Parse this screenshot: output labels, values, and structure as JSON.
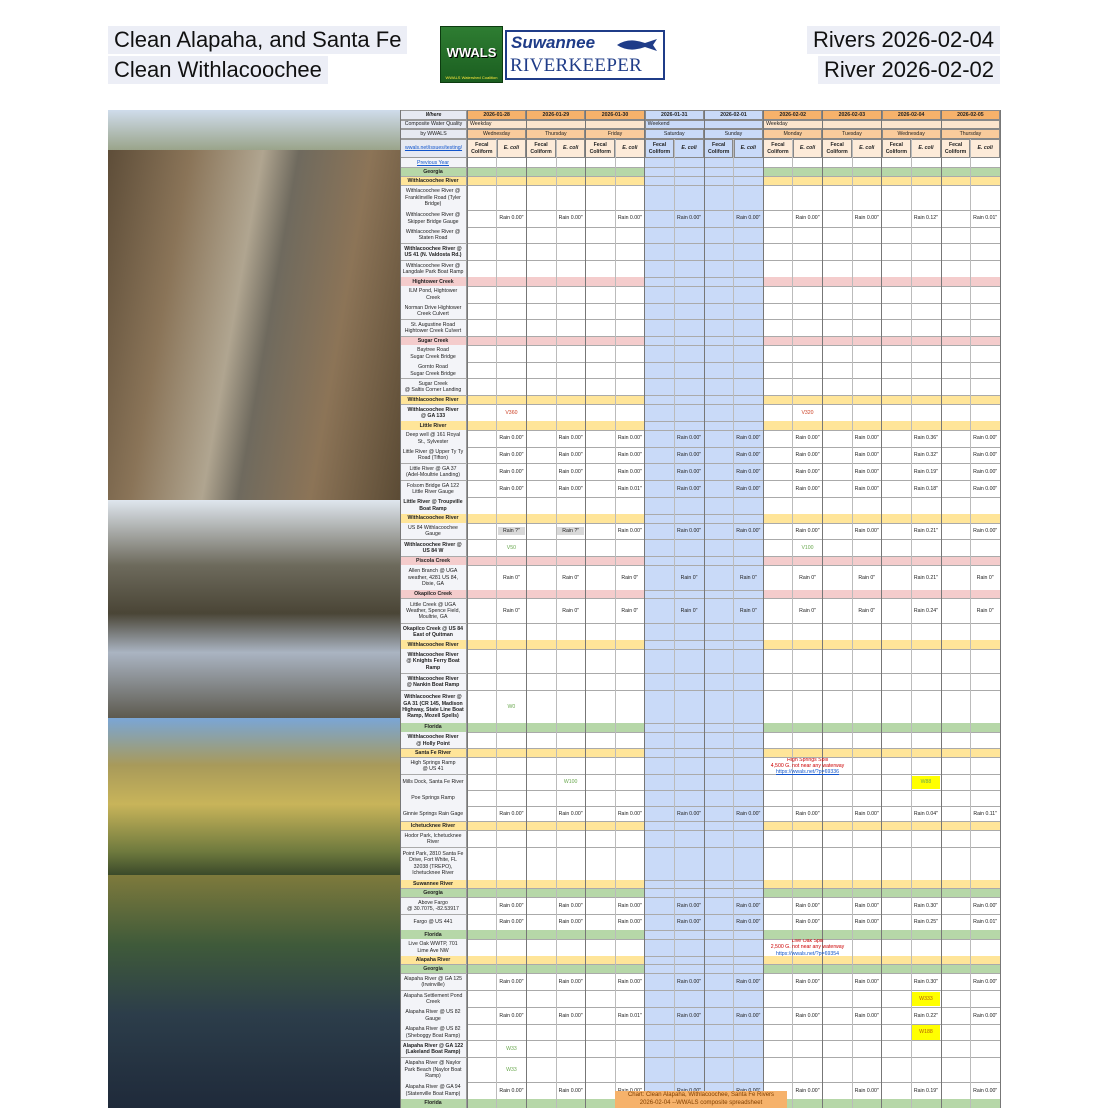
{
  "header": {
    "left": [
      "Clean Alapaha, and Santa Fe",
      "Clean Withlacoochee"
    ],
    "right": [
      "Rivers 2026-02-04",
      "River 2026-02-02"
    ],
    "logo": {
      "badge": "WWALS",
      "tagline": "WWALS Watershed Coalition",
      "name1": "Suwannee",
      "name2": "RIVERKEEPER"
    }
  },
  "table": {
    "corner": [
      "Where",
      "Composite Water Quality",
      "by WWALS",
      "wwals.net/issues/testing/"
    ],
    "groups": [
      {
        "label": "Weekday",
        "span": 3
      },
      {
        "label": "Weekend",
        "span": 2
      },
      {
        "label": "Weekday",
        "span": 4
      }
    ],
    "dates": [
      {
        "date": "2026-01-28",
        "day": "Wednesday",
        "weekend": false
      },
      {
        "date": "2026-01-29",
        "day": "Thursday",
        "weekend": false
      },
      {
        "date": "2026-01-30",
        "day": "Friday",
        "weekend": false
      },
      {
        "date": "2026-01-31",
        "day": "Saturday",
        "weekend": true
      },
      {
        "date": "2026-02-01",
        "day": "Sunday",
        "weekend": true
      },
      {
        "date": "2026-02-02",
        "day": "Monday",
        "weekend": false
      },
      {
        "date": "2026-02-03",
        "day": "Tuesday",
        "weekend": false
      },
      {
        "date": "2026-02-04",
        "day": "Wednesday",
        "weekend": false
      },
      {
        "date": "2026-02-05",
        "day": "Thursday",
        "weekend": false
      }
    ],
    "subheads": [
      [
        "Fecal",
        "Coliform"
      ],
      [
        "E. coli"
      ]
    ],
    "rows": [
      {
        "kind": "link",
        "lines": [
          "Previous Year"
        ]
      },
      {
        "kind": "state",
        "lines": [
          "Georgia"
        ]
      },
      {
        "kind": "river",
        "lines": [
          "Withlacoochee River"
        ]
      },
      {
        "kind": "site",
        "lines": [
          "Withlacoochee River @",
          "Franklinville Road (Tyler",
          "Bridge)"
        ]
      },
      {
        "kind": "site",
        "lines": [
          "Withlacoochee River @",
          "Skipper Bridge Gauge"
        ],
        "rain": [
          "Rain 0.00\"",
          "Rain 0.00\"",
          "Rain 0.00\"",
          "Rain 0.00\"",
          "Rain 0.00\"",
          "Rain 0.00\"",
          "Rain 0.00\"",
          "Rain 0.12\"",
          "Rain 0.01\""
        ]
      },
      {
        "kind": "site",
        "lines": [
          "Withlacoochee River @",
          "Staten Road"
        ]
      },
      {
        "kind": "site",
        "bold": true,
        "lines": [
          "Withlacoochee River @",
          "US 41 (N. Valdosta Rd.)"
        ]
      },
      {
        "kind": "site",
        "lines": [
          "Withlacoochee River @",
          "Langdale Park Boat Ramp"
        ]
      },
      {
        "kind": "creek",
        "lines": [
          "Hightower Creek"
        ]
      },
      {
        "kind": "site",
        "lines": [
          "ILM Pond, Hightower",
          "Creek"
        ]
      },
      {
        "kind": "site",
        "lines": [
          "Norman Drive Hightower",
          "Creek Culvert"
        ]
      },
      {
        "kind": "site",
        "lines": [
          "St. Augustine Road",
          "Hightower Creek Culvert"
        ]
      },
      {
        "kind": "creek",
        "lines": [
          "Sugar Creek"
        ]
      },
      {
        "kind": "site",
        "lines": [
          "Baytree Road",
          "Sugar Creek Bridge"
        ]
      },
      {
        "kind": "site",
        "lines": [
          "Gornto Road",
          "Sugar Creek Bridge"
        ]
      },
      {
        "kind": "site",
        "lines": [
          "Sugar Creek",
          "@ Saltis Corner Landing"
        ]
      },
      {
        "kind": "river",
        "lines": [
          "Withlacoochee River"
        ]
      },
      {
        "kind": "site",
        "bold": true,
        "lines": [
          "Withlacoochee River",
          "@ GA 133"
        ],
        "results": [
          {
            "col": 1,
            "text": "V360",
            "color": "#cc4125"
          },
          {
            "col": 11,
            "text": "V320",
            "color": "#cc4125"
          }
        ]
      },
      {
        "kind": "river",
        "lines": [
          "Little River"
        ]
      },
      {
        "kind": "site",
        "lines": [
          "Deep well @ 161 Royal",
          "St., Sylvester"
        ],
        "rain": [
          "Rain 0.00\"",
          "Rain 0.00\"",
          "Rain 0.00\"",
          "Rain 0.00\"",
          "Rain 0.00\"",
          "Rain 0.00\"",
          "Rain 0.00\"",
          "Rain 0.36\"",
          "Rain 0.00\""
        ]
      },
      {
        "kind": "site",
        "lines": [
          "Little River @ Upper Ty Ty",
          "Road (Tifton)"
        ],
        "rain": [
          "Rain 0.00\"",
          "Rain 0.00\"",
          "Rain 0.00\"",
          "Rain 0.00\"",
          "Rain 0.00\"",
          "Rain 0.00\"",
          "Rain 0.00\"",
          "Rain 0.32\"",
          "Rain 0.00\""
        ]
      },
      {
        "kind": "site",
        "lines": [
          "Little River @ GA 37",
          "(Adel-Moultrie Landing)"
        ],
        "rain": [
          "Rain 0.00\"",
          "Rain 0.00\"",
          "Rain 0.00\"",
          "Rain 0.00\"",
          "Rain 0.00\"",
          "Rain 0.00\"",
          "Rain 0.00\"",
          "Rain 0.19\"",
          "Rain 0.00\""
        ]
      },
      {
        "kind": "site",
        "lines": [
          "Folsom Bridge GA 122",
          "Little River Gauge"
        ],
        "rain": [
          "Rain 0.00\"",
          "Rain 0.00\"",
          "Rain 0.01\"",
          "Rain 0.00\"",
          "Rain 0.00\"",
          "Rain 0.00\"",
          "Rain 0.00\"",
          "Rain 0.18\"",
          "Rain 0.00\""
        ]
      },
      {
        "kind": "site",
        "bold": true,
        "lines": [
          "Little River @ Troupville",
          "Boat Ramp"
        ]
      },
      {
        "kind": "river",
        "lines": [
          "Withlacoochee River"
        ]
      },
      {
        "kind": "site",
        "lines": [
          "US 84 Withlacoochee",
          "Gauge"
        ],
        "rain": [
          "Rain ?\"",
          "Rain ?\"",
          "Rain 0.00\"",
          "Rain 0.00\"",
          "Rain 0.00\"",
          "Rain 0.00\"",
          "Rain 0.00\"",
          "Rain 0.21\"",
          "Rain 0.00\""
        ]
      },
      {
        "kind": "site",
        "bold": true,
        "lines": [
          "Withlacoochee River @",
          "US 84 W"
        ],
        "results": [
          {
            "col": 1,
            "text": "V50",
            "color": "#6aa84f"
          },
          {
            "col": 11,
            "text": "V100",
            "color": "#6aa84f"
          }
        ]
      },
      {
        "kind": "creek",
        "lines": [
          "Piscola Creek"
        ]
      },
      {
        "kind": "site",
        "lines": [
          "Allen Branch @ UGA",
          "weather, 4281 US 84,",
          "Dixie, GA"
        ],
        "rain": [
          "Rain 0\"",
          "Rain 0\"",
          "Rain 0\"",
          "Rain 0\"",
          "Rain 0\"",
          "Rain 0\"",
          "Rain 0\"",
          "Rain 0.21\"",
          "Rain 0\""
        ]
      },
      {
        "kind": "creek",
        "lines": [
          "Okapilco Creek"
        ]
      },
      {
        "kind": "site",
        "lines": [
          "Little Creek @ UGA",
          "Weather, Spence Field,",
          "Moultrie, GA"
        ],
        "rain": [
          "Rain 0\"",
          "Rain 0\"",
          "Rain 0\"",
          "Rain 0\"",
          "Rain 0\"",
          "Rain 0\"",
          "Rain 0\"",
          "Rain 0.24\"",
          "Rain 0\""
        ]
      },
      {
        "kind": "site",
        "bold": true,
        "lines": [
          "Okapilco Creek @ US 84",
          "East of Quitman"
        ]
      },
      {
        "kind": "river",
        "lines": [
          "Withlacoochee River"
        ]
      },
      {
        "kind": "site",
        "bold": true,
        "lines": [
          "Withlacoochee River",
          "@ Knights Ferry Boat",
          "Ramp"
        ]
      },
      {
        "kind": "site",
        "bold": true,
        "lines": [
          "Withlacoochee River",
          "@ Nankin Boat Ramp"
        ]
      },
      {
        "kind": "site",
        "bold": true,
        "lines": [
          "Withlacoochee River @",
          "GA 31 (CR 145, Madison",
          "Highway, State Line Boat",
          "Ramp, Mozell Spells)"
        ],
        "results": [
          {
            "col": 1,
            "text": "W0",
            "color": "#6aa84f"
          }
        ]
      },
      {
        "kind": "state",
        "lines": [
          "Florida"
        ]
      },
      {
        "kind": "site",
        "bold": true,
        "lines": [
          "Withlacoochee River",
          "@ Holly Point"
        ]
      },
      {
        "kind": "river",
        "lines": [
          "Santa Fe River"
        ]
      },
      {
        "kind": "site",
        "lines": [
          "High Springs Ramp",
          "@ US 41"
        ],
        "notes": [
          {
            "col": 11,
            "lines": [
              "High Springs Spill",
              "4,500 G. not near any waterway"
            ],
            "url": "https://wwals.net/?p=69336"
          }
        ]
      },
      {
        "kind": "site",
        "lines": [
          "Mills Dock, Santa Fe River"
        ],
        "results": [
          {
            "col": 3,
            "text": "W100",
            "color": "#6aa84f"
          },
          {
            "col": 15,
            "text": "W88",
            "color": "#6aa84f",
            "highlight": true
          }
        ]
      },
      {
        "kind": "site",
        "lines": [
          "Poe Springs Ramp"
        ]
      },
      {
        "kind": "site",
        "lines": [
          "Ginnie Springs Rain Gage"
        ],
        "rain": [
          "Rain 0.00\"",
          "Rain 0.00\"",
          "Rain 0.00\"",
          "Rain 0.00\"",
          "Rain 0.00\"",
          "Rain 0.00\"",
          "Rain 0.00\"",
          "Rain 0.04\"",
          "Rain 0.11\""
        ]
      },
      {
        "kind": "river",
        "lines": [
          "Ichetucknee River"
        ]
      },
      {
        "kind": "site",
        "lines": [
          "Hodor Park, Ichetucknee",
          "River"
        ]
      },
      {
        "kind": "site",
        "lines": [
          "Point Park, 2810 Santa Fe",
          "Drive, Fort White, FL",
          "32038 (TREPO),",
          "Ichetucknee River"
        ]
      },
      {
        "kind": "river",
        "lines": [
          "Suwannee River"
        ]
      },
      {
        "kind": "state",
        "lines": [
          "Georgia"
        ]
      },
      {
        "kind": "site",
        "lines": [
          "Above Fargo",
          "@ 30.7075, -82.53917"
        ],
        "rain": [
          "Rain 0.00\"",
          "Rain 0.00\"",
          "Rain 0.00\"",
          "Rain 0.00\"",
          "Rain 0.00\"",
          "Rain 0.00\"",
          "Rain 0.00\"",
          "Rain 0.30\"",
          "Rain 0.00\""
        ]
      },
      {
        "kind": "site",
        "lines": [
          "Fargo @ US 441"
        ],
        "rain": [
          "Rain 0.00\"",
          "Rain 0.00\"",
          "Rain 0.00\"",
          "Rain 0.00\"",
          "Rain 0.00\"",
          "Rain 0.00\"",
          "Rain 0.00\"",
          "Rain 0.25\"",
          "Rain 0.01\""
        ]
      },
      {
        "kind": "state",
        "lines": [
          "Florida"
        ]
      },
      {
        "kind": "site",
        "lines": [
          "Live Oak WWTP, 701",
          "Lime Ave NW"
        ],
        "notes": [
          {
            "col": 11,
            "lines": [
              "Live Oak Spill",
              "2,500 G. not near any waterway"
            ],
            "url": "https://wwals.net/?p=69354"
          }
        ]
      },
      {
        "kind": "river",
        "lines": [
          "Alapaha River"
        ]
      },
      {
        "kind": "state",
        "lines": [
          "Georgia"
        ]
      },
      {
        "kind": "site",
        "lines": [
          "Alapaha River @ GA 125",
          "(Irwinville)"
        ],
        "rain": [
          "Rain 0.00\"",
          "Rain 0.00\"",
          "Rain 0.00\"",
          "Rain 0.00\"",
          "Rain 0.00\"",
          "Rain 0.00\"",
          "Rain 0.00\"",
          "Rain 0.30\"",
          "Rain 0.00\""
        ]
      },
      {
        "kind": "site",
        "lines": [
          "Alapaha Settlement Pond",
          "Creek"
        ],
        "results": [
          {
            "col": 15,
            "text": "W333",
            "color": "#b45f06",
            "highlight": true
          }
        ]
      },
      {
        "kind": "site",
        "lines": [
          "Alapaha River @ US 82",
          "Gauge"
        ],
        "rain": [
          "Rain 0.00\"",
          "Rain 0.00\"",
          "Rain 0.01\"",
          "Rain 0.00\"",
          "Rain 0.00\"",
          "Rain 0.00\"",
          "Rain 0.00\"",
          "Rain 0.22\"",
          "Rain 0.00\""
        ]
      },
      {
        "kind": "site",
        "lines": [
          "Alapaha River @ US 82",
          "(Sheboggy Boat Ramp)"
        ],
        "results": [
          {
            "col": 15,
            "text": "W188",
            "color": "#b45f06",
            "highlight": true
          }
        ]
      },
      {
        "kind": "site",
        "bold": true,
        "lines": [
          "Alapaha River @ GA 122",
          "(Lakeland Boat Ramp)"
        ],
        "results": [
          {
            "col": 1,
            "text": "W33",
            "color": "#6aa84f"
          }
        ]
      },
      {
        "kind": "site",
        "lines": [
          "Alapaha River @ Naylor",
          "Park Beach (Naylor Boat",
          "Ramp)"
        ],
        "results": [
          {
            "col": 1,
            "text": "W33",
            "color": "#6aa84f"
          }
        ]
      },
      {
        "kind": "site",
        "lines": [
          "Alapaha River @ GA 94",
          "(Statenville Boat Ramp)"
        ],
        "rain": [
          "Rain 0.00\"",
          "Rain 0.00\"",
          "Rain 0.00\"",
          "Rain 0.00\"",
          "Rain 0.00\"",
          "Rain 0.00\"",
          "Rain 0.00\"",
          "Rain 0.19\"",
          "Rain 0.00\""
        ]
      },
      {
        "kind": "state",
        "lines": [
          "Florida"
        ]
      }
    ],
    "caption": [
      "Chart: Clean Alapaha, Withlacoochee, Santa Fe Rivers",
      "2026-02-04 --WWALS composite spreadsheet"
    ]
  }
}
